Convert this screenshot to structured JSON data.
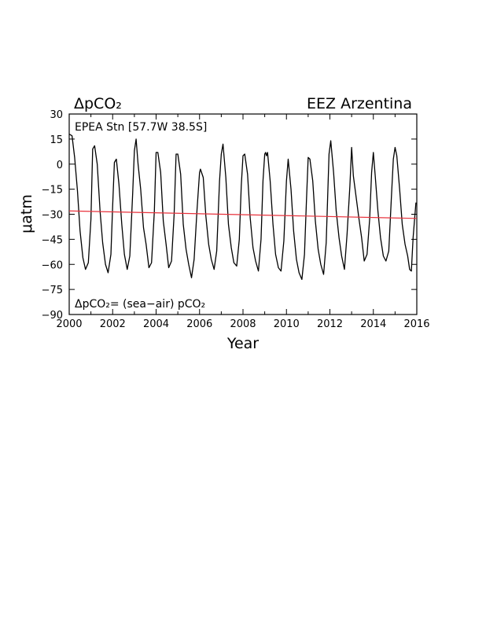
{
  "chart_data": {
    "type": "line",
    "title_left": "ΔpCO₂",
    "title_right": "EEZ Arzentina",
    "annotation_top": "EPEA Stn [57.7W 38.5S]",
    "annotation_bottom": "ΔpCO₂= (sea−air) pCO₂",
    "xlabel": "Year",
    "ylabel": "μatm",
    "xlim": [
      2000,
      2016
    ],
    "ylim": [
      -90,
      30
    ],
    "x_ticks": [
      2000,
      2002,
      2004,
      2006,
      2008,
      2010,
      2012,
      2014,
      2016
    ],
    "x_tick_labels": [
      "2000",
      "2002",
      "2004",
      "2006",
      "2008",
      "2010",
      "2012",
      "2014",
      "2016"
    ],
    "y_ticks": [
      30,
      15,
      0,
      -15,
      -30,
      -45,
      -60,
      -75,
      -90
    ],
    "y_tick_labels": [
      "30",
      "15",
      "0",
      "−15",
      "−30",
      "−45",
      "−60",
      "−75",
      "−90"
    ],
    "grid": false,
    "series": [
      {
        "color": "#000000",
        "points": [
          [
            2000.0,
            18
          ],
          [
            2000.13,
            17
          ],
          [
            2000.25,
            4
          ],
          [
            2000.38,
            -16
          ],
          [
            2000.5,
            -40
          ],
          [
            2000.63,
            -56
          ],
          [
            2000.75,
            -63
          ],
          [
            2000.88,
            -59
          ],
          [
            2001.0,
            -33
          ],
          [
            2001.08,
            9
          ],
          [
            2001.17,
            11
          ],
          [
            2001.29,
            0
          ],
          [
            2001.42,
            -28
          ],
          [
            2001.54,
            -47
          ],
          [
            2001.67,
            -60
          ],
          [
            2001.79,
            -65
          ],
          [
            2001.92,
            -54
          ],
          [
            2002.0,
            -25
          ],
          [
            2002.08,
            1
          ],
          [
            2002.17,
            3
          ],
          [
            2002.29,
            -12
          ],
          [
            2002.42,
            -36
          ],
          [
            2002.54,
            -54
          ],
          [
            2002.67,
            -63
          ],
          [
            2002.79,
            -55
          ],
          [
            2002.92,
            -18
          ],
          [
            2003.0,
            8
          ],
          [
            2003.08,
            15
          ],
          [
            2003.17,
            0
          ],
          [
            2003.29,
            -15
          ],
          [
            2003.42,
            -38
          ],
          [
            2003.54,
            -48
          ],
          [
            2003.67,
            -62
          ],
          [
            2003.79,
            -59
          ],
          [
            2003.92,
            -28
          ],
          [
            2004.0,
            7
          ],
          [
            2004.08,
            7
          ],
          [
            2004.21,
            -5
          ],
          [
            2004.33,
            -34
          ],
          [
            2004.46,
            -48
          ],
          [
            2004.58,
            -62
          ],
          [
            2004.71,
            -58
          ],
          [
            2004.83,
            -30
          ],
          [
            2004.92,
            6
          ],
          [
            2005.0,
            6
          ],
          [
            2005.13,
            -6
          ],
          [
            2005.25,
            -36
          ],
          [
            2005.38,
            -51
          ],
          [
            2005.5,
            -60
          ],
          [
            2005.63,
            -68
          ],
          [
            2005.75,
            -57
          ],
          [
            2005.88,
            -28
          ],
          [
            2006.0,
            -5
          ],
          [
            2006.04,
            -3
          ],
          [
            2006.17,
            -8
          ],
          [
            2006.29,
            -31
          ],
          [
            2006.42,
            -48
          ],
          [
            2006.54,
            -57
          ],
          [
            2006.67,
            -63
          ],
          [
            2006.79,
            -52
          ],
          [
            2006.92,
            -10
          ],
          [
            2007.0,
            6
          ],
          [
            2007.08,
            12
          ],
          [
            2007.21,
            -8
          ],
          [
            2007.33,
            -36
          ],
          [
            2007.46,
            -50
          ],
          [
            2007.58,
            -59
          ],
          [
            2007.71,
            -61
          ],
          [
            2007.83,
            -45
          ],
          [
            2007.92,
            -13
          ],
          [
            2008.0,
            5
          ],
          [
            2008.08,
            6
          ],
          [
            2008.21,
            -6
          ],
          [
            2008.33,
            -32
          ],
          [
            2008.46,
            -50
          ],
          [
            2008.58,
            -58
          ],
          [
            2008.71,
            -64
          ],
          [
            2008.83,
            -45
          ],
          [
            2008.92,
            -10
          ],
          [
            2009.0,
            6
          ],
          [
            2009.04,
            7
          ],
          [
            2009.08,
            5
          ],
          [
            2009.13,
            7
          ],
          [
            2009.25,
            -10
          ],
          [
            2009.38,
            -36
          ],
          [
            2009.5,
            -54
          ],
          [
            2009.63,
            -62
          ],
          [
            2009.75,
            -64
          ],
          [
            2009.88,
            -46
          ],
          [
            2010.0,
            -10
          ],
          [
            2010.08,
            3
          ],
          [
            2010.21,
            -15
          ],
          [
            2010.33,
            -40
          ],
          [
            2010.46,
            -57
          ],
          [
            2010.58,
            -65
          ],
          [
            2010.71,
            -69
          ],
          [
            2010.83,
            -54
          ],
          [
            2010.92,
            -22
          ],
          [
            2011.0,
            4
          ],
          [
            2011.08,
            3
          ],
          [
            2011.21,
            -10
          ],
          [
            2011.33,
            -34
          ],
          [
            2011.46,
            -51
          ],
          [
            2011.58,
            -60
          ],
          [
            2011.71,
            -66
          ],
          [
            2011.83,
            -47
          ],
          [
            2011.96,
            6
          ],
          [
            2012.04,
            14
          ],
          [
            2012.17,
            -5
          ],
          [
            2012.29,
            -28
          ],
          [
            2012.42,
            -44
          ],
          [
            2012.54,
            -55
          ],
          [
            2012.67,
            -63
          ],
          [
            2012.79,
            -42
          ],
          [
            2012.92,
            -13
          ],
          [
            2013.0,
            10
          ],
          [
            2013.08,
            -7
          ],
          [
            2013.21,
            -20
          ],
          [
            2013.33,
            -32
          ],
          [
            2013.46,
            -44
          ],
          [
            2013.58,
            -58
          ],
          [
            2013.71,
            -54
          ],
          [
            2013.83,
            -33
          ],
          [
            2013.92,
            -5
          ],
          [
            2014.0,
            7
          ],
          [
            2014.08,
            -6
          ],
          [
            2014.21,
            -28
          ],
          [
            2014.33,
            -44
          ],
          [
            2014.46,
            -55
          ],
          [
            2014.58,
            -58
          ],
          [
            2014.71,
            -52
          ],
          [
            2014.83,
            -20
          ],
          [
            2014.92,
            3
          ],
          [
            2015.0,
            10
          ],
          [
            2015.08,
            5
          ],
          [
            2015.21,
            -15
          ],
          [
            2015.33,
            -36
          ],
          [
            2015.46,
            -48
          ],
          [
            2015.58,
            -55
          ],
          [
            2015.67,
            -63
          ],
          [
            2015.75,
            -64
          ],
          [
            2015.83,
            -44
          ],
          [
            2015.96,
            -23
          ]
        ]
      },
      {
        "color": "#e8323c",
        "points": [
          [
            2000.0,
            -28
          ],
          [
            2016.0,
            -32.5
          ]
        ]
      }
    ]
  }
}
